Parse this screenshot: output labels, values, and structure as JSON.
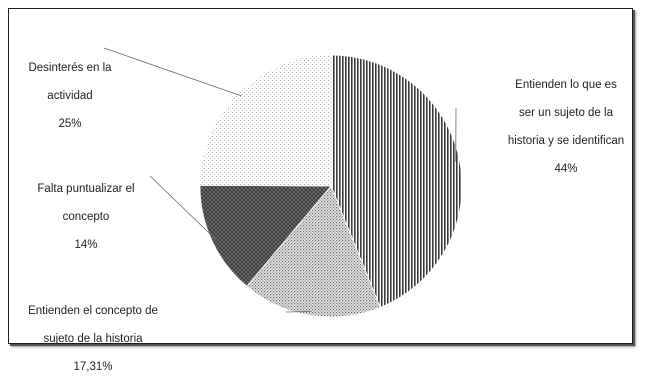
{
  "chart_data": {
    "type": "pie",
    "title": "",
    "start_angle_deg": 0,
    "direction": "clockwise",
    "slices": [
      {
        "label": "Entienden lo que es ser un sujeto de la historia y se identifican",
        "label_lines": [
          "Entienden lo que es",
          "ser un sujeto de la",
          "historia y se identifican"
        ],
        "pct_label": "44%",
        "value": 44,
        "pattern": "vertical-stripes"
      },
      {
        "label": "Entienden el concepto de sujeto de la historia",
        "label_lines": [
          "Entienden el concepto de",
          "sujeto de la historia"
        ],
        "pct_label": "17,31%",
        "value": 17.31,
        "pattern": "fine-dots"
      },
      {
        "label": "Falta puntualizar el concepto",
        "label_lines": [
          "Falta puntualizar el",
          "concepto"
        ],
        "pct_label": "14%",
        "value": 14,
        "pattern": "dark-crosshatch"
      },
      {
        "label": "Desinterés en la actividad",
        "label_lines": [
          "Desinterés en la",
          "actividad"
        ],
        "pct_label": "25%",
        "value": 25,
        "pattern": "light-dots"
      }
    ]
  }
}
